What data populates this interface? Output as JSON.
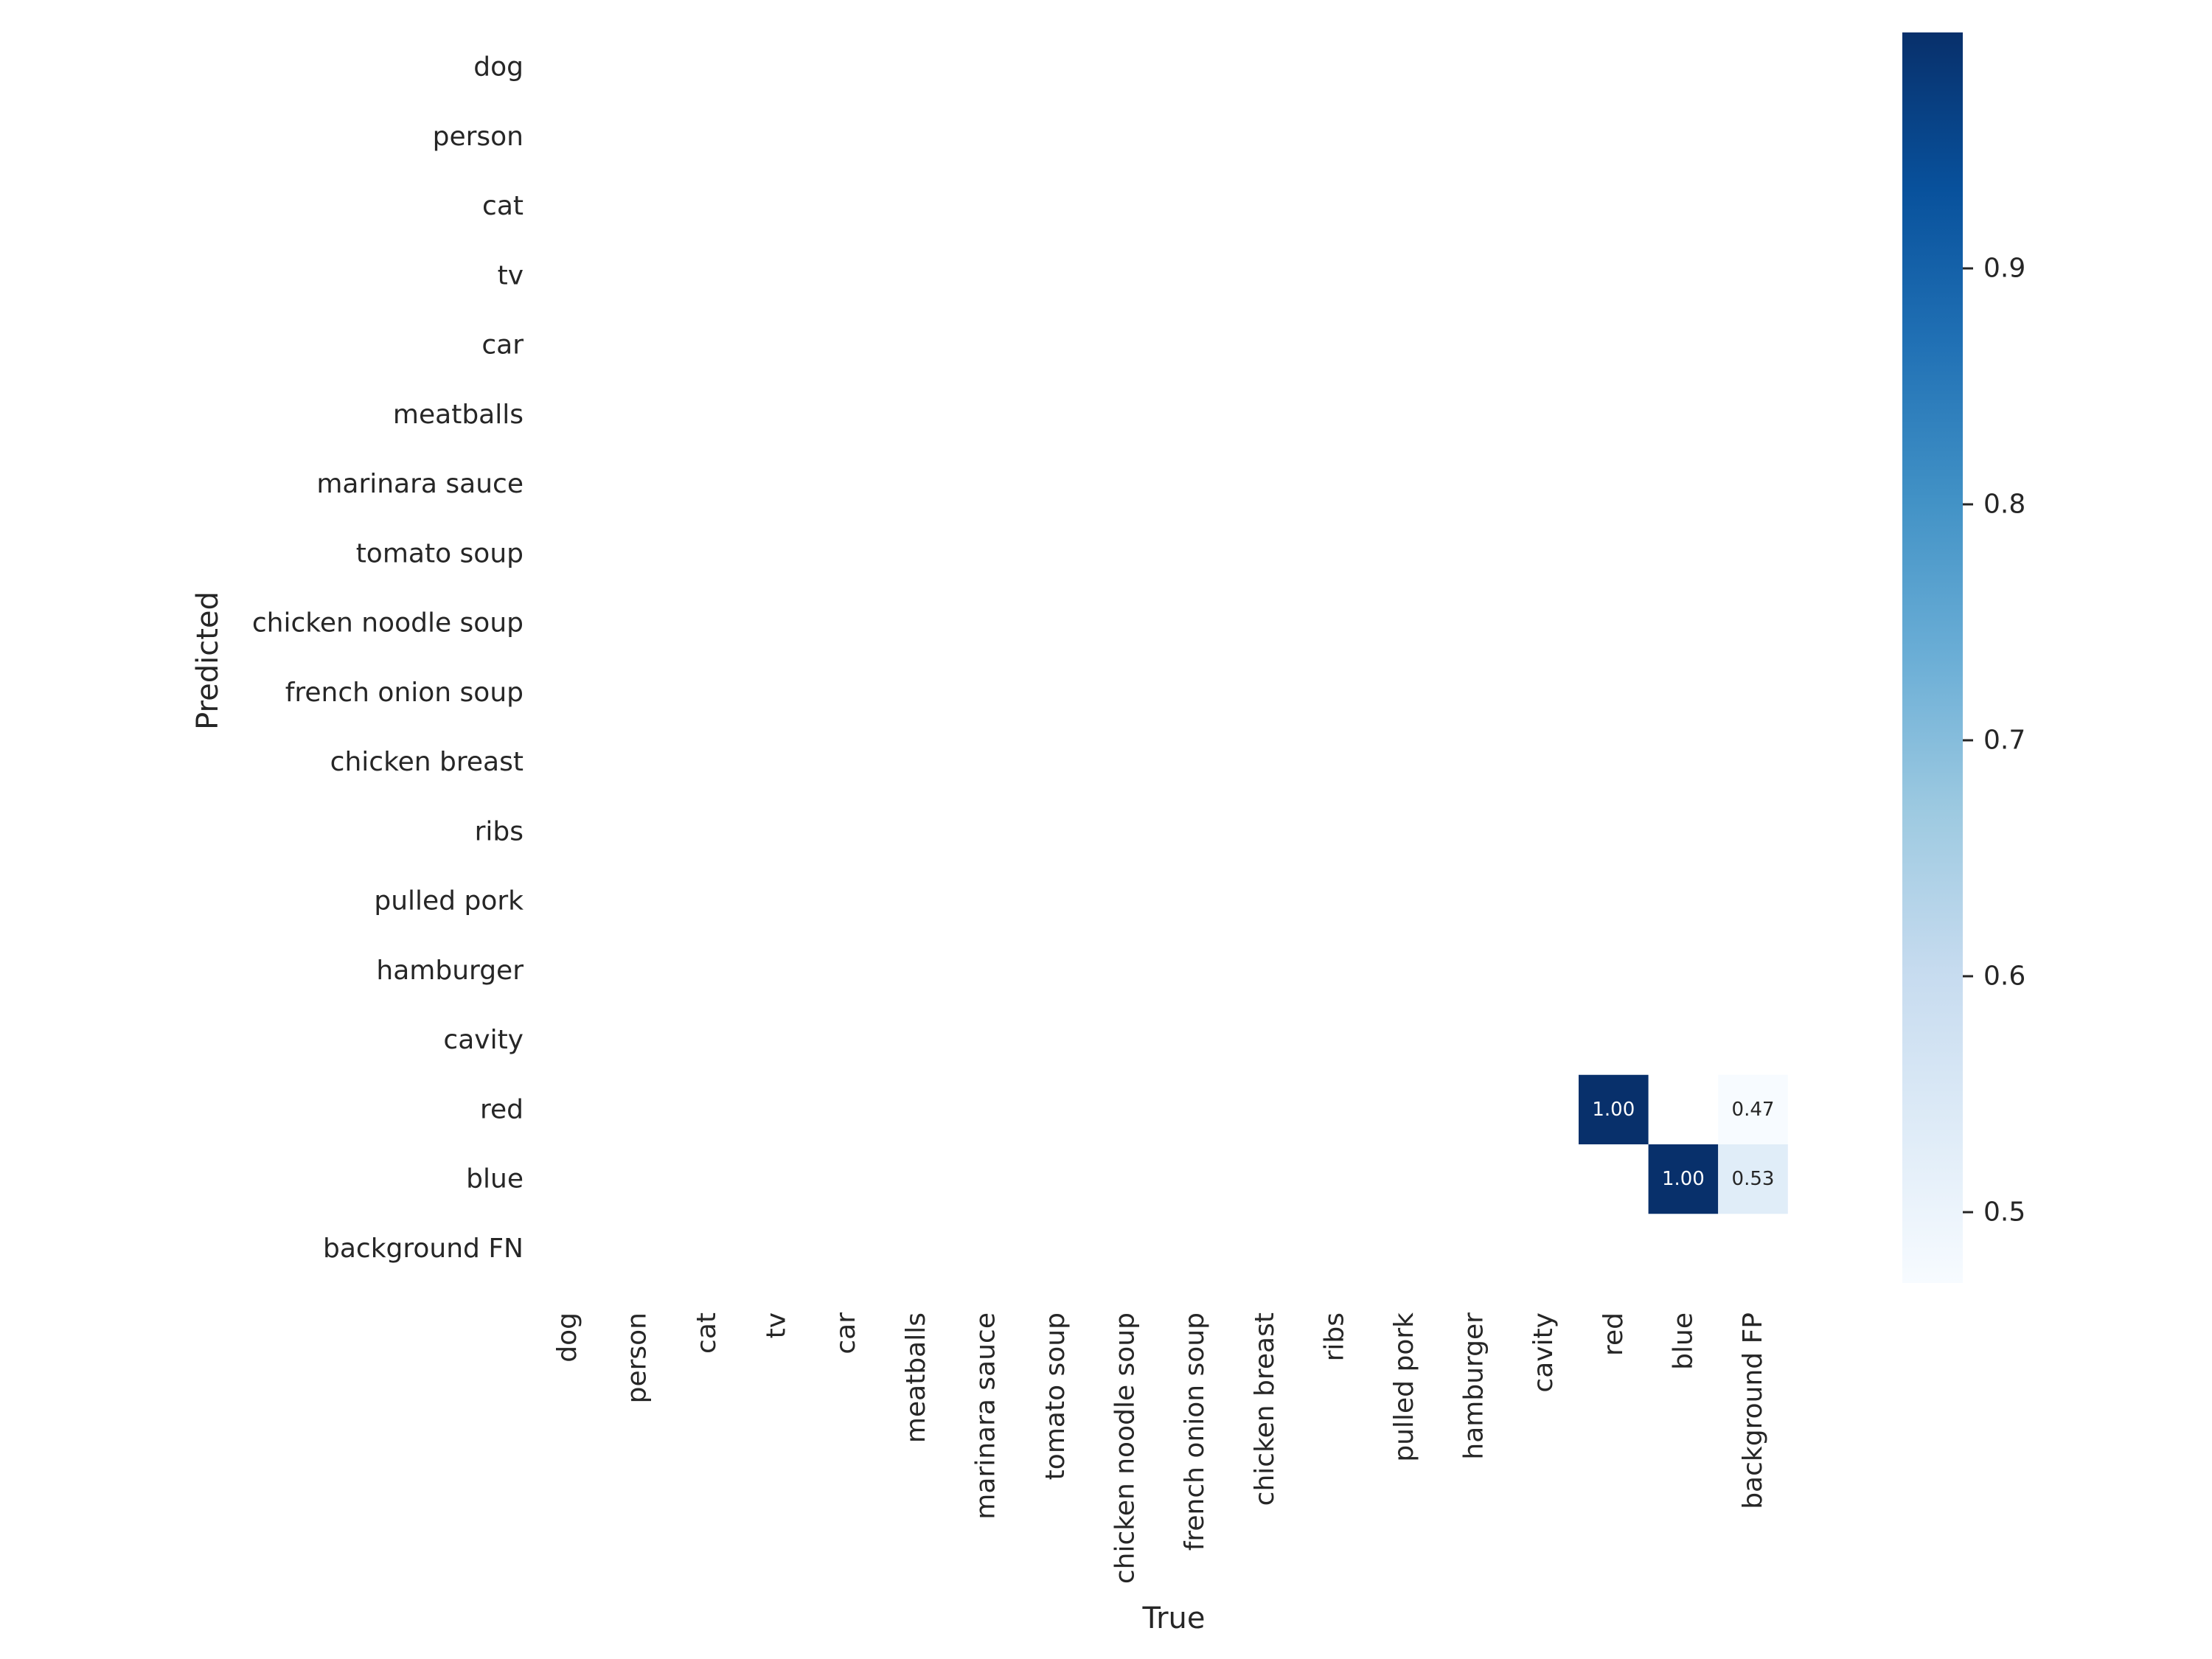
{
  "chart_data": {
    "type": "heatmap",
    "xlabel": "True",
    "ylabel": "Predicted",
    "x_categories": [
      "dog",
      "person",
      "cat",
      "tv",
      "car",
      "meatballs",
      "marinara sauce",
      "tomato soup",
      "chicken noodle soup",
      "french onion soup",
      "chicken breast",
      "ribs",
      "pulled pork",
      "hamburger",
      "cavity",
      "red",
      "blue",
      "background FP"
    ],
    "y_categories": [
      "dog",
      "person",
      "cat",
      "tv",
      "car",
      "meatballs",
      "marinara sauce",
      "tomato soup",
      "chicken noodle soup",
      "french onion soup",
      "chicken breast",
      "ribs",
      "pulled pork",
      "hamburger",
      "cavity",
      "red",
      "blue",
      "background FN"
    ],
    "cells": [
      {
        "row": "red",
        "col": "red",
        "value": 1.0,
        "label": "1.00"
      },
      {
        "row": "red",
        "col": "background FP",
        "value": 0.47,
        "label": "0.47"
      },
      {
        "row": "blue",
        "col": "blue",
        "value": 1.0,
        "label": "1.00"
      },
      {
        "row": "blue",
        "col": "background FP",
        "value": 0.53,
        "label": "0.53"
      }
    ],
    "colorbar": {
      "min": 0.47,
      "max": 1.0,
      "ticks": [
        0.5,
        0.6,
        0.7,
        0.8,
        0.9
      ],
      "tick_labels": [
        "0.5",
        "0.6",
        "0.7",
        "0.8",
        "0.9"
      ],
      "colormap": "Blues"
    },
    "grid": false
  },
  "colors": {
    "text": "#262626",
    "background": "#ffffff",
    "cmap_low": "#f7fbff",
    "cmap_high": "#08306b",
    "cell_text_dark": "#262626",
    "cell_text_light": "#ffffff"
  }
}
